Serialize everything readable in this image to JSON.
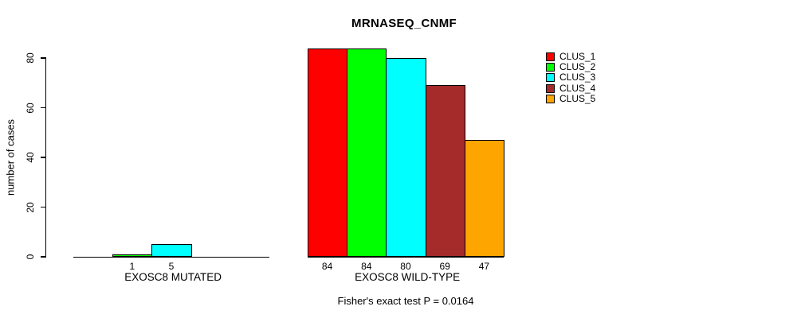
{
  "chart_data": {
    "type": "bar",
    "title": "MRNASEQ_CNMF",
    "ylabel": "number of cases",
    "xlabel": "",
    "ylim": [
      0,
      80
    ],
    "yticks": [
      0,
      20,
      40,
      60,
      80
    ],
    "grid": false,
    "legend_position": "right",
    "clusters": [
      "CLUS_1",
      "CLUS_2",
      "CLUS_3",
      "CLUS_4",
      "CLUS_5"
    ],
    "cluster_colors": [
      "#FF0000",
      "#00FF00",
      "#00FFFF",
      "#A52A2A",
      "#FFA500"
    ],
    "groups": [
      {
        "label": "EXOSC8 MUTATED",
        "values": [
          0,
          1,
          5,
          0,
          0
        ],
        "bar_labels": [
          "",
          "1",
          "5",
          "",
          ""
        ]
      },
      {
        "label": "EXOSC8 WILD-TYPE",
        "values": [
          84,
          84,
          80,
          69,
          47
        ],
        "bar_labels": [
          "84",
          "84",
          "80",
          "69",
          "47"
        ]
      }
    ],
    "annotation": "Fisher's exact test P = 0.0164"
  }
}
